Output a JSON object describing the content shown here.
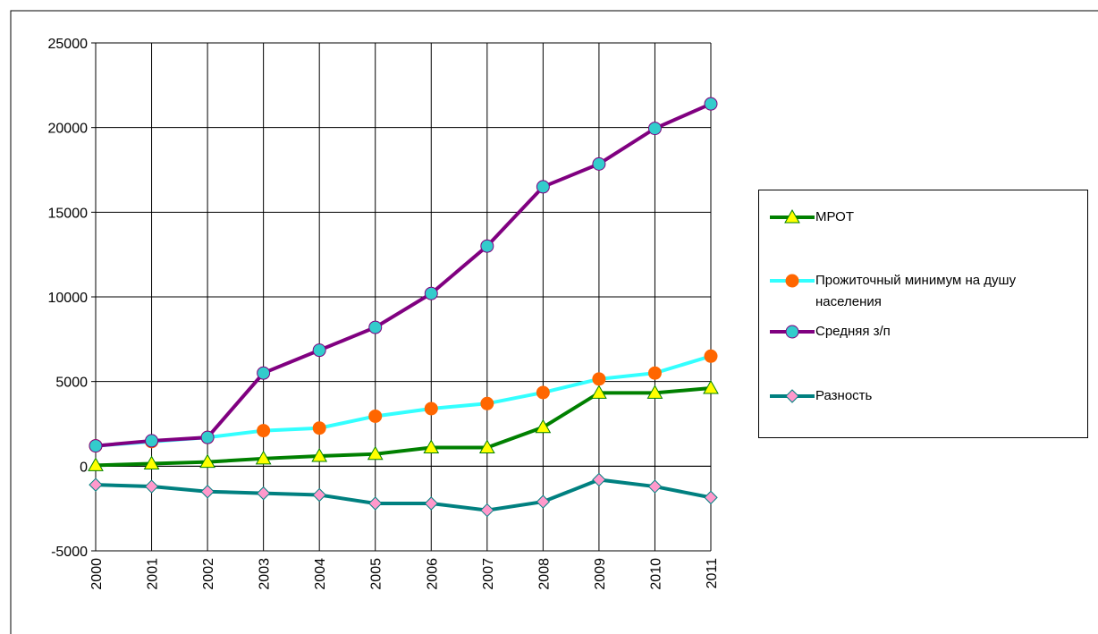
{
  "chart_data": {
    "type": "line",
    "categories": [
      "2000",
      "2001",
      "2002",
      "2003",
      "2004",
      "2005",
      "2006",
      "2007",
      "2008",
      "2009",
      "2010",
      "2011"
    ],
    "series": [
      {
        "name": "МРОТ",
        "color": "#008000",
        "marker": "triangle",
        "marker_color": "#ffff00",
        "values": [
          50,
          150,
          250,
          450,
          600,
          720,
          1100,
          1100,
          2300,
          4330,
          4330,
          4611
        ]
      },
      {
        "name": "Прожиточный минимум на душу населения",
        "color": "#33ffff",
        "marker": "circle",
        "marker_color": "#ff6600",
        "values": [
          1200,
          1450,
          1700,
          2100,
          2250,
          2950,
          3400,
          3700,
          4350,
          5150,
          5500,
          6500
        ]
      },
      {
        "name": "Средняя з/п",
        "color": "#800080",
        "marker": "circle",
        "marker_color": "#33cccc",
        "values": [
          1200,
          1500,
          1700,
          5500,
          6850,
          8200,
          10200,
          13000,
          16500,
          17850,
          19950,
          21400
        ]
      },
      {
        "name": "Разность",
        "color": "#008080",
        "marker": "diamond",
        "marker_color": "#ff99cc",
        "values": [
          -1100,
          -1200,
          -1500,
          -1600,
          -1700,
          -2200,
          -2200,
          -2600,
          -2100,
          -800,
          -1200,
          -1850
        ]
      }
    ],
    "ylim": [
      -5000,
      25000
    ],
    "yticks": [
      -5000,
      0,
      5000,
      10000,
      15000,
      20000,
      25000
    ],
    "grid": true,
    "legend": "right"
  }
}
